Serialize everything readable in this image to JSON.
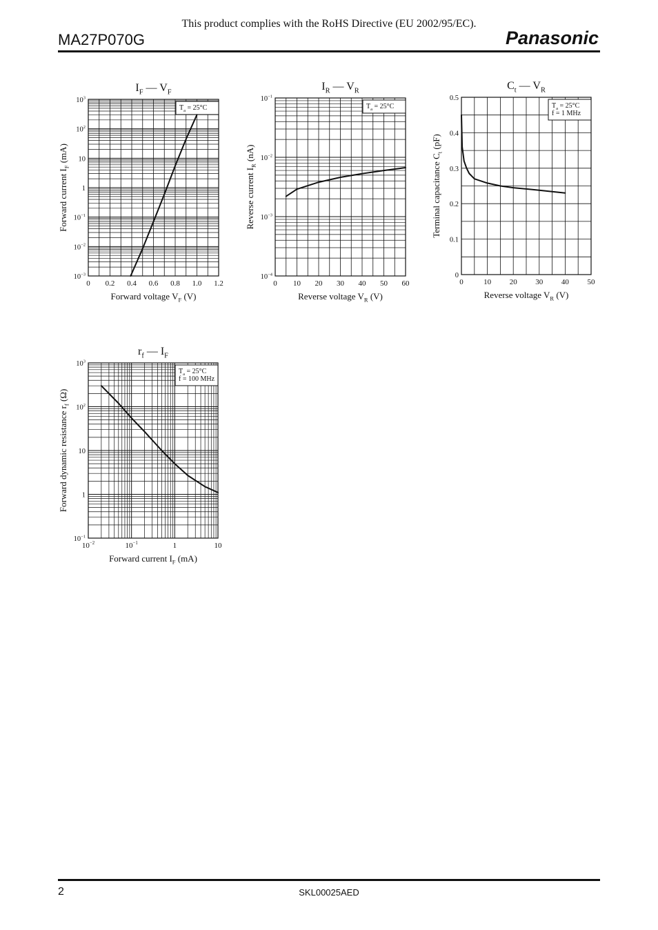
{
  "header": {
    "rohs_text": "This product complies with the RoHS Directive (EU 2002/95/EC).",
    "part_number": "MA27P070G",
    "brand": "Panasonic"
  },
  "footer": {
    "page_number": "2",
    "document_code": "SKL00025AED"
  },
  "chart_data": [
    {
      "id": "if-vf",
      "type": "line",
      "title": "IF — VF",
      "xlabel": "Forward voltage VF (V)",
      "ylabel": "Forward current IF (mA)",
      "xscale": "linear",
      "yscale": "log",
      "xlim": [
        0,
        1.2
      ],
      "ylim": [
        0.001,
        1000
      ],
      "xticks": [
        "0",
        "0.2",
        "0.4",
        "0.6",
        "0.8",
        "1.0",
        "1.2"
      ],
      "yticks": [
        "10^-3",
        "10^-2",
        "10^-1",
        "1",
        "10",
        "10^2",
        "10^3"
      ],
      "legend_lines": [
        "Ta = 25°C"
      ],
      "legend_position": "top-right",
      "grid": true,
      "series": [
        {
          "x": [
            0.39,
            0.5,
            0.6,
            0.7,
            0.8,
            0.9,
            1.0
          ],
          "y": [
            0.001,
            0.0085,
            0.07,
            0.6,
            5.5,
            45,
            300
          ]
        }
      ]
    },
    {
      "id": "ir-vr",
      "type": "line",
      "title": "IR — VR",
      "xlabel": "Reverse voltage VR (V)",
      "ylabel": "Reverse current IR (nA)",
      "xscale": "linear",
      "yscale": "log",
      "xlim": [
        0,
        60
      ],
      "ylim": [
        0.0001,
        0.1
      ],
      "xticks": [
        "0",
        "10",
        "20",
        "30",
        "40",
        "50",
        "60"
      ],
      "yticks": [
        "10^-4",
        "10^-3",
        "10^-2",
        "10^-1"
      ],
      "legend_lines": [
        "Ta = 25°C"
      ],
      "legend_position": "top-right",
      "grid": true,
      "series": [
        {
          "x": [
            5,
            10,
            20,
            30,
            40,
            50,
            60
          ],
          "y": [
            0.0022,
            0.0029,
            0.0038,
            0.0046,
            0.0053,
            0.006,
            0.0067
          ]
        }
      ]
    },
    {
      "id": "ct-vr",
      "type": "line",
      "title": "Ct — VR",
      "xlabel": "Reverse voltage VR (V)",
      "ylabel": "Terminal capacitance Ct (pF)",
      "xscale": "linear",
      "yscale": "linear",
      "xlim": [
        0,
        50
      ],
      "ylim": [
        0,
        0.5
      ],
      "xticks": [
        "0",
        "10",
        "20",
        "30",
        "40",
        "50"
      ],
      "yticks": [
        "0",
        "0.1",
        "0.2",
        "0.3",
        "0.4",
        "0.5"
      ],
      "legend_lines": [
        "Ta = 25°C",
        "f = 1 MHz"
      ],
      "legend_position": "top-right",
      "grid": true,
      "series": [
        {
          "x": [
            0,
            0.3,
            1,
            2,
            3,
            5,
            10,
            15,
            20,
            30,
            40
          ],
          "y": [
            0.45,
            0.36,
            0.32,
            0.3,
            0.285,
            0.27,
            0.258,
            0.25,
            0.245,
            0.238,
            0.23
          ]
        }
      ]
    },
    {
      "id": "rf-if",
      "type": "line",
      "title": "rf — IF",
      "xlabel": "Forward current IF (mA)",
      "ylabel": "Forward dynamic resistance rf (Ω)",
      "xscale": "log",
      "yscale": "log",
      "xlim": [
        0.01,
        10
      ],
      "ylim": [
        0.1,
        1000
      ],
      "xticks": [
        "10^-2",
        "10^-1",
        "1",
        "10"
      ],
      "yticks": [
        "10^-1",
        "1",
        "10",
        "10^2",
        "10^3"
      ],
      "legend_lines": [
        "Ta = 25°C",
        "f = 100 MHz"
      ],
      "legend_position": "top-right",
      "grid": true,
      "series": [
        {
          "x": [
            0.02,
            0.05,
            0.1,
            0.2,
            0.5,
            1,
            2,
            5,
            10
          ],
          "y": [
            300,
            120,
            55,
            27,
            10,
            5,
            2.7,
            1.5,
            1.1
          ]
        }
      ]
    }
  ]
}
